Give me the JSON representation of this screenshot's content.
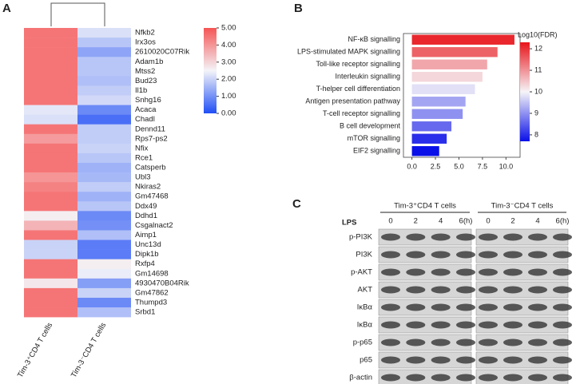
{
  "panel_labels": [
    "A",
    "B",
    "C"
  ],
  "chart_data": [
    {
      "type": "heatmap",
      "rows": [
        "Nfkb2",
        "Irx3os",
        "2610020C07Rik",
        "Adam1b",
        "Mtss2",
        "Bud23",
        "Il1b",
        "Snhg16",
        "Acaca",
        "Chadl",
        "Dennd11",
        "Rps7-ps2",
        "Nfix",
        "Rce1",
        "Catsperb",
        "Ubl3",
        "Nkiras2",
        "Gm47468",
        "Ddx49",
        "Ddhd1",
        "Csgalnact2",
        "Aimp1",
        "Unc13d",
        "Dipk1b",
        "Rxfp4",
        "Gm14698",
        "4930470B04Rik",
        "Gm47862",
        "Thumpd3",
        "Srbd1"
      ],
      "columns": [
        "Tim-3⁺CD4 T cells",
        "Tim-3⁻CD4 T cells"
      ],
      "values": [
        [
          4.5,
          2.2
        ],
        [
          4.5,
          1.8
        ],
        [
          4.5,
          1.3
        ],
        [
          4.5,
          1.8
        ],
        [
          4.5,
          1.8
        ],
        [
          4.5,
          1.7
        ],
        [
          4.5,
          1.9
        ],
        [
          4.5,
          2.1
        ],
        [
          2.3,
          0.9
        ],
        [
          2.2,
          0.5
        ],
        [
          4.5,
          1.9
        ],
        [
          3.9,
          1.9
        ],
        [
          4.5,
          2.0
        ],
        [
          4.5,
          1.8
        ],
        [
          4.5,
          1.5
        ],
        [
          4.0,
          1.6
        ],
        [
          4.3,
          1.9
        ],
        [
          4.5,
          1.5
        ],
        [
          4.5,
          1.8
        ],
        [
          2.6,
          0.9
        ],
        [
          3.5,
          1.0
        ],
        [
          4.5,
          1.7
        ],
        [
          2.0,
          0.7
        ],
        [
          2.0,
          0.7
        ],
        [
          4.5,
          2.6
        ],
        [
          4.5,
          2.4
        ],
        [
          2.7,
          1.2
        ],
        [
          4.5,
          2.0
        ],
        [
          4.5,
          0.9
        ],
        [
          4.5,
          1.7
        ]
      ],
      "colorscale": [
        "#1f4ef5",
        "#f4f4f8",
        "#f55555"
      ],
      "clim": [
        0,
        5
      ],
      "cticks": [
        {
          "value": 0,
          "label": "0.00"
        },
        {
          "value": 1,
          "label": "1.00"
        },
        {
          "value": 2,
          "label": "2.00"
        },
        {
          "value": 3,
          "label": "3.00"
        },
        {
          "value": 4,
          "label": "4.00"
        },
        {
          "value": 5,
          "label": "5.00"
        }
      ]
    },
    {
      "type": "barh",
      "categories": [
        "NF-κB signalling",
        "LPS-stimulated MAPK signalling",
        "Toll-like receptor signalling",
        "Interleukin signalling",
        "T-helper cell differentiation",
        "Antigen presentation pathway",
        "T-cell receptor signalling",
        "B cell development",
        "mTOR signalling",
        "EIF2 signalling"
      ],
      "values": [
        10.9,
        9.1,
        8.0,
        7.5,
        6.7,
        5.7,
        5.4,
        4.2,
        3.7,
        2.9
      ],
      "fdr": [
        12.1,
        11.5,
        10.8,
        10.3,
        9.8,
        9.2,
        9.0,
        8.6,
        8.0,
        7.7
      ],
      "xlim": [
        -0.9,
        11.5
      ],
      "xticks": [
        {
          "value": 0,
          "label": "0.0"
        },
        {
          "value": 2.5,
          "label": "2.5"
        },
        {
          "value": 5,
          "label": "5.0"
        },
        {
          "value": 7.5,
          "label": "7.5"
        },
        {
          "value": 10,
          "label": "10.0"
        }
      ],
      "colorbar_title": "Log10(FDR)",
      "colorscale": [
        "#0a10e8",
        "#f6f4f8",
        "#e8141a"
      ],
      "clim": [
        7.7,
        12.3
      ],
      "cticks": [
        8,
        9,
        10,
        11,
        12
      ]
    }
  ],
  "blot": {
    "groups": [
      "Tim-3⁺CD4 T cells",
      "Tim-3⁻CD4 T cells"
    ],
    "treatment": "LPS",
    "times": [
      "0",
      "2",
      "4",
      "6(h)"
    ],
    "rows": [
      "p-PI3K",
      "PI3K",
      "p-AKT",
      "AKT",
      "IκBα",
      "IκBα",
      "p-p65",
      "p65",
      "β-actin"
    ]
  }
}
